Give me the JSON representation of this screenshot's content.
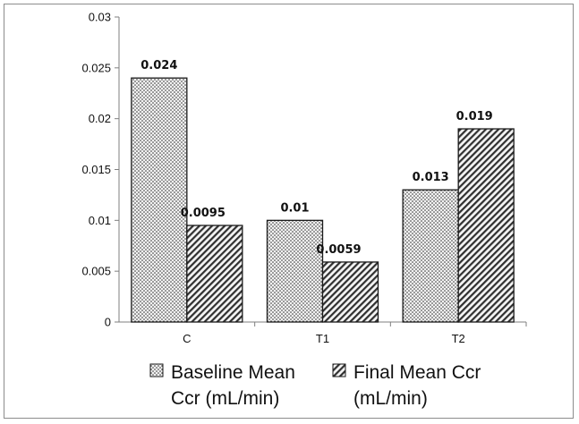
{
  "chart_data": {
    "type": "bar",
    "title": "",
    "xlabel": "",
    "ylabel": "",
    "categories": [
      "C",
      "T1",
      "T2"
    ],
    "series": [
      {
        "name_lines": [
          "Baseline Mean",
          "Ccr (mL/min)"
        ],
        "values": [
          0.024,
          0.01,
          0.013
        ],
        "labels": [
          "0.024",
          "0.01",
          "0.013"
        ],
        "pattern": "dots"
      },
      {
        "name_lines": [
          "Final Mean Ccr",
          "(mL/min)"
        ],
        "values": [
          0.0095,
          0.0059,
          0.019
        ],
        "labels": [
          "0.0095",
          "0.0059",
          "0.019"
        ],
        "pattern": "diagonal-hatch"
      }
    ],
    "ylim": [
      0,
      0.03
    ],
    "yticks": [
      0,
      0.005,
      0.01,
      0.015,
      0.02,
      0.025,
      0.03
    ],
    "ytick_labels": [
      "0",
      "0.005",
      "0.01",
      "0.015",
      "0.02",
      "0.025",
      "0.03"
    ],
    "grid": false,
    "legend_position": "bottom",
    "colors": {
      "bar_stroke": "#1a1a1a",
      "axis": "#7f7f7f",
      "pattern_ink": "#303030"
    }
  }
}
